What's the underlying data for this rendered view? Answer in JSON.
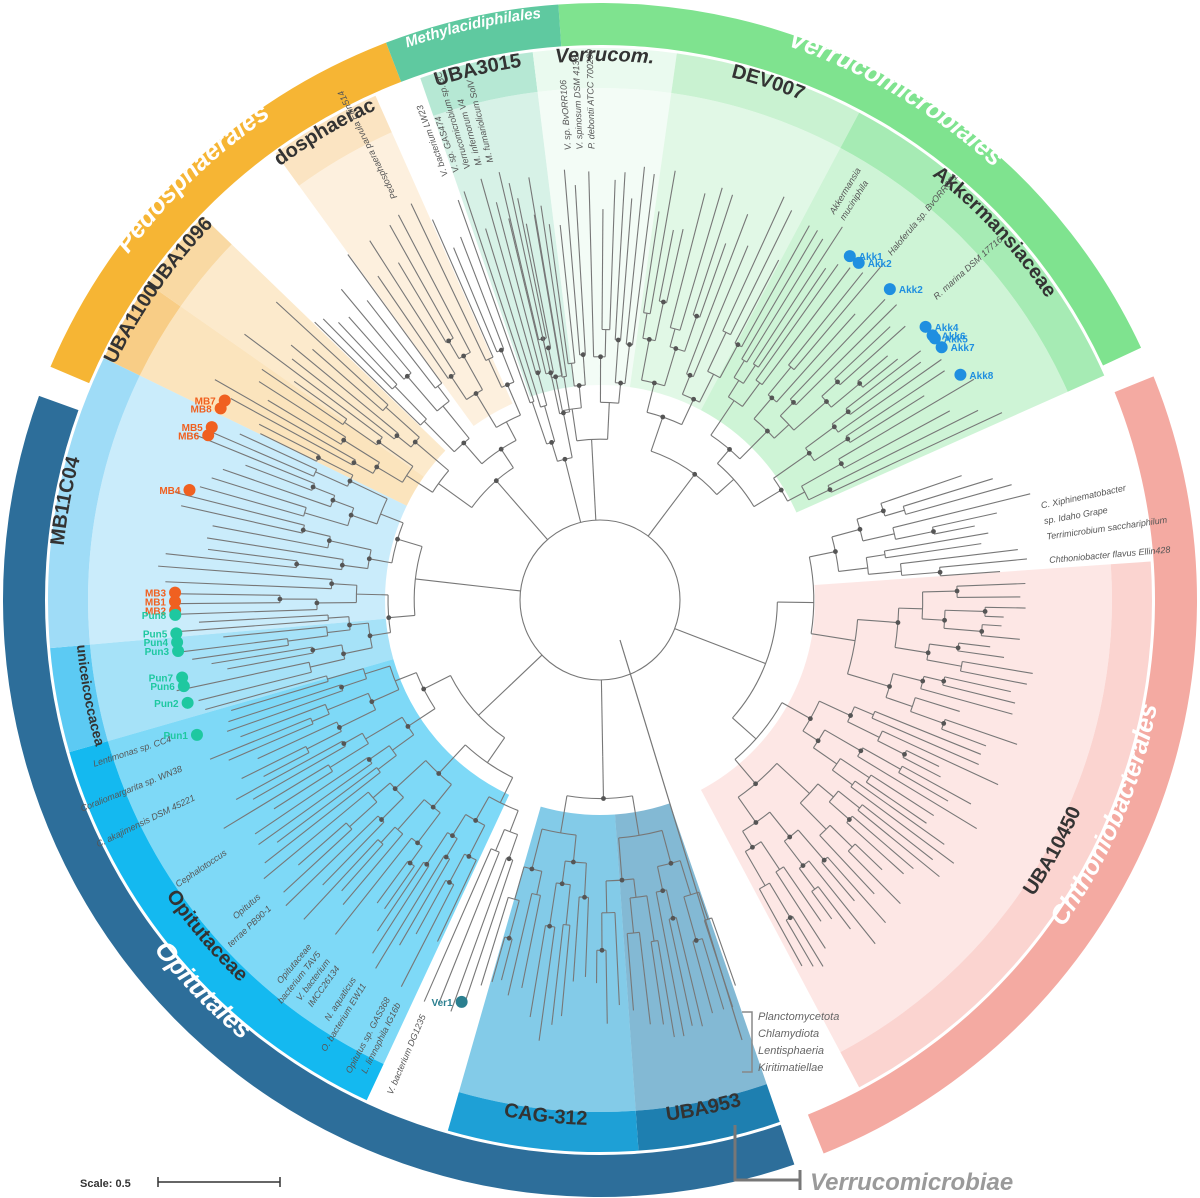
{
  "figure": {
    "scale_label": "Scale: 0.5",
    "class_label": "Verrucomicrobiae",
    "outgroups": [
      "Planctomycetota",
      "Chlamydiota",
      "Lentisphaeria",
      "Kiritimatiellae"
    ]
  },
  "orders": [
    {
      "id": "verrucomicrobiales",
      "label": "Verrucomicrobiales",
      "a0": -4,
      "a1": 65,
      "color": "#7fe38f"
    },
    {
      "id": "chthoniobacterales",
      "label": "Chthoniobacterales",
      "a0": 68,
      "a1": 158,
      "color": "#f4aaa2"
    },
    {
      "id": "opitutales",
      "label": "Opitutales",
      "a0": 161,
      "a1": 290,
      "color": "#2d6e9a"
    },
    {
      "id": "pedosphaerales",
      "label": "Pedosphaerales",
      "a0": 293,
      "a1": 339,
      "color": "#f6b534"
    },
    {
      "id": "methylacidiphilales",
      "label": "Methylacidiphilales",
      "a0": 339,
      "a1": 356,
      "color": "#5fc9a0"
    }
  ],
  "families": [
    {
      "id": "uba3015",
      "label": "UBA3015",
      "a0": 341,
      "a1": 353,
      "color": "#b6e8d4",
      "text_color": "#333333"
    },
    {
      "id": "verrucom",
      "label": "Verrucom.",
      "a0": 353,
      "a1": 8,
      "color": "#eafaef",
      "text_color": "#333333",
      "italic": true
    },
    {
      "id": "dev007",
      "label": "DEV007",
      "a0": 8,
      "a1": 28,
      "color": "#c9f2d1",
      "text_color": "#333333"
    },
    {
      "id": "akkermansiaceae",
      "label": "Akkermansiaceae",
      "a0": 28,
      "a1": 66,
      "color": "#a6ebb4",
      "text_color": "#333333"
    },
    {
      "id": "uba10450",
      "label": "UBA10450",
      "a0": 86,
      "a1": 152,
      "color": "#fbd4d0",
      "text_color": "#333333"
    },
    {
      "id": "uba953",
      "label": "UBA953",
      "a0": 161,
      "a1": 176,
      "color": "#1e7fb0",
      "text_color": "#222222"
    },
    {
      "id": "cag312",
      "label": "CAG-312",
      "a0": 176,
      "a1": 196,
      "color": "#1ea0d6",
      "text_color": "#222222"
    },
    {
      "id": "opitutaceae",
      "label": "Opitutaceae",
      "a0": 205,
      "a1": 254,
      "color": "#14b9f0",
      "text_color": "#222222"
    },
    {
      "id": "puniceicoccaceae",
      "label": "Puniceicoccaceae",
      "a0": 254,
      "a1": 265,
      "color": "#5ccaf3",
      "text_color": "#333333"
    },
    {
      "id": "mb11c04",
      "label": "MB11C04",
      "a0": 265,
      "a1": 296,
      "color": "#9fdcf7",
      "text_color": "#333333"
    },
    {
      "id": "uba1100",
      "label": "UBA1100",
      "a0": 296,
      "a1": 305,
      "color": "#f8cd86",
      "text_color": "#333333"
    },
    {
      "id": "uba1096",
      "label": "UBA1096",
      "a0": 305,
      "a1": 314,
      "color": "#f9d9a3",
      "text_color": "#333333"
    },
    {
      "id": "pedosphaeraceae",
      "label": "Pedosphaeraceae",
      "a0": 324,
      "a1": 336,
      "color": "#fbe4c2",
      "text_color": "#333333"
    }
  ],
  "taxa": [
    {
      "label": "Pedosphaera parvula Ellin514",
      "angle": 333
    },
    {
      "label": "V. bacterium LW23",
      "angle": 340
    },
    {
      "label": "V. sp. GAS474",
      "angle": 341.5
    },
    {
      "label": "Verrucomicrobium sp. 3C",
      "angle": 343
    },
    {
      "label": "M. infernorum V4",
      "angle": 344.5
    },
    {
      "label": "M. fumariolicum SolV",
      "angle": 346
    },
    {
      "label": "V. sp. BvORR106",
      "angle": 356
    },
    {
      "label": "V. spinosum DSM 4136",
      "angle": 357.5
    },
    {
      "label": "P. debontii ATCC 700200",
      "angle": 359
    },
    {
      "label": "Akkermansia",
      "angle": 31
    },
    {
      "label": "muciniphila",
      "angle": 32.5
    },
    {
      "label": "Haloferula sp. BvORR071",
      "angle": 40
    },
    {
      "label": "R. marina DSM 17716",
      "angle": 48
    },
    {
      "label": "C. Xiphinematobacter",
      "angle": 78
    },
    {
      "label": "sp. Idaho Grape",
      "angle": 80
    },
    {
      "label": "Terrimicrobium sacchariphilum",
      "angle": 82
    },
    {
      "label": "Chthoniobacter flavus Ellin428",
      "angle": 85
    },
    {
      "label": "Lentimonas sp. CC4",
      "angle": 252
    },
    {
      "label": "Coraliomargarita sp. WN38",
      "angle": 248
    },
    {
      "label": "C. akajimensis DSM 45221",
      "angle": 244
    },
    {
      "label": "Cephalotoccus",
      "angle": 236
    },
    {
      "label": "Opitutus",
      "angle": 229
    },
    {
      "label": "terrae PB90-1",
      "angle": 227
    },
    {
      "label": "Opitutaceae",
      "angle": 220
    },
    {
      "label": "bacterium TAV5",
      "angle": 218.5
    },
    {
      "label": "V. bacterium",
      "angle": 217
    },
    {
      "label": "IMCC26134",
      "angle": 215.5
    },
    {
      "label": "N. aquaticus",
      "angle": 213
    },
    {
      "label": "O. bacterium EW11",
      "angle": 211.5
    },
    {
      "label": "Opitutus sp. GAS368",
      "angle": 208
    },
    {
      "label": "L. limnophila IG16b",
      "angle": 206.5
    },
    {
      "label": "V. bacterium DG1235",
      "angle": 203
    }
  ],
  "markers": [
    {
      "label": "Akk1",
      "angle": 36,
      "color": "#1f8fe0"
    },
    {
      "label": "Akk2",
      "angle": 37.5,
      "color": "#1f8fe0"
    },
    {
      "label": "Akk2",
      "angle": 43,
      "color": "#1f8fe0"
    },
    {
      "label": "Akk4",
      "angle": 50,
      "color": "#1f8fe0"
    },
    {
      "label": "Akk5",
      "angle": 52,
      "color": "#1f8fe0"
    },
    {
      "label": "Akk6",
      "angle": 51.5,
      "color": "#1f8fe0"
    },
    {
      "label": "Akk7",
      "angle": 53.5,
      "color": "#1f8fe0"
    },
    {
      "label": "Akk8",
      "angle": 58,
      "color": "#1f8fe0"
    },
    {
      "label": "MB7",
      "angle": 298,
      "color": "#f06020"
    },
    {
      "label": "MB8",
      "angle": 296.8,
      "color": "#f06020"
    },
    {
      "label": "MB5",
      "angle": 294,
      "color": "#f06020"
    },
    {
      "label": "MB6",
      "angle": 292.8,
      "color": "#f06020"
    },
    {
      "label": "MB4",
      "angle": 285,
      "color": "#f06020"
    },
    {
      "label": "MB3",
      "angle": 271,
      "color": "#f06020"
    },
    {
      "label": "MB1",
      "angle": 269.8,
      "color": "#f06020"
    },
    {
      "label": "MB2",
      "angle": 268.6,
      "color": "#f06020"
    },
    {
      "label": "Pun8",
      "angle": 268,
      "color": "#1ec8a0"
    },
    {
      "label": "Pun5",
      "angle": 265.5,
      "color": "#1ec8a0"
    },
    {
      "label": "Pun4",
      "angle": 264.3,
      "color": "#1ec8a0"
    },
    {
      "label": "Pun3",
      "angle": 263.1,
      "color": "#1ec8a0"
    },
    {
      "label": "Pun7",
      "angle": 259.5,
      "color": "#1ec8a0"
    },
    {
      "label": "Pun6",
      "angle": 258.3,
      "color": "#1ec8a0"
    },
    {
      "label": "Pun2",
      "angle": 256,
      "color": "#1ec8a0"
    },
    {
      "label": "Pun1",
      "angle": 251.5,
      "color": "#1ec8a0"
    },
    {
      "label": "Ver1",
      "angle": 199,
      "color": "#2a7f8f"
    }
  ],
  "legend_colors": {
    "branch": "#777777",
    "node": "#555555",
    "highlight": "#f5d20f"
  }
}
